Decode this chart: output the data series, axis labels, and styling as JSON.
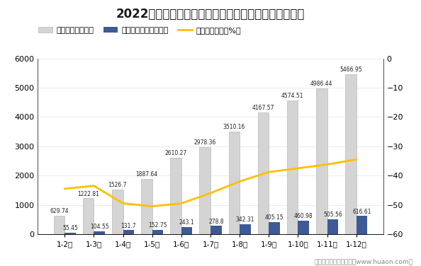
{
  "title": "2022年浙江省房地产商品住宅及商品住宅现房销售面积",
  "categories": [
    "1-2月",
    "1-3月",
    "1-4月",
    "1-5月",
    "1-6月",
    "1-7月",
    "1-8月",
    "1-9月",
    "1-10月",
    "1-11月",
    "1-12月"
  ],
  "bar1_values": [
    629.74,
    1222.81,
    1526.7,
    1887.64,
    2610.27,
    2978.36,
    3510.16,
    4167.57,
    4574.51,
    4986.44,
    5466.95
  ],
  "bar2_values": [
    55.45,
    104.55,
    131.7,
    152.75,
    243.1,
    278.8,
    342.31,
    405.15,
    460.98,
    505.56,
    616.61
  ],
  "line_values": [
    -44.5,
    -43.5,
    -49.5,
    -50.5,
    -49.5,
    -46.0,
    -42.0,
    -38.8,
    -37.5,
    -36.2,
    -34.5
  ],
  "bar1_color": "#d4d4d4",
  "bar1_edgecolor": "#bbbbbb",
  "bar2_color": "#3d5a96",
  "line_color": "#ffc000",
  "legend_labels": [
    "商品住宅（万㎡）",
    "商品住宅现房（万㎡）",
    "商品住宅增速（%）"
  ],
  "ylim_left": [
    0,
    6000
  ],
  "ylim_right": [
    -60,
    0
  ],
  "yticks_left": [
    0,
    1000,
    2000,
    3000,
    4000,
    5000,
    6000
  ],
  "yticks_right": [
    -60,
    -50,
    -40,
    -30,
    -20,
    -10,
    0
  ],
  "background_color": "#ffffff",
  "footer": "制图：华经产业研究院（www.huaon.com）"
}
